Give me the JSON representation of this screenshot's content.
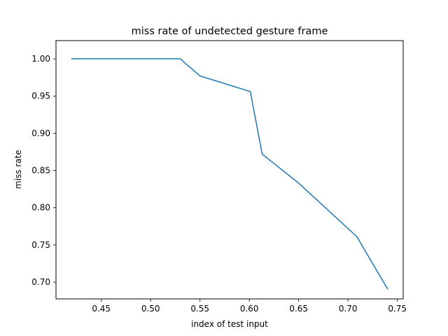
{
  "chart_data": {
    "type": "line",
    "title": "miss rate of undetected gesture frame",
    "xlabel": "index of test input",
    "ylabel": "miss rate",
    "xlim": [
      0.4041,
      0.7559
    ],
    "ylim": [
      0.6775,
      1.0245
    ],
    "xticks": [
      0.45,
      0.5,
      0.55,
      0.6,
      0.65,
      0.7,
      0.75
    ],
    "xtick_labels": [
      "0.45",
      "0.50",
      "0.55",
      "0.60",
      "0.65",
      "0.70",
      "0.75"
    ],
    "yticks": [
      0.7,
      0.75,
      0.8,
      0.85,
      0.9,
      0.95,
      1.0
    ],
    "ytick_labels": [
      "0.70",
      "0.75",
      "0.80",
      "0.85",
      "0.90",
      "0.95",
      "1.00"
    ],
    "grid": false,
    "legend": "none",
    "series": [
      {
        "color": "#1f77b4",
        "points": [
          [
            0.42,
            1.0
          ],
          [
            0.44,
            1.0
          ],
          [
            0.42,
            1.0
          ],
          [
            0.53,
            1.0
          ],
          [
            0.55,
            0.977
          ],
          [
            0.601,
            0.956
          ],
          [
            0.613,
            0.872
          ],
          [
            0.65,
            0.833
          ],
          [
            0.709,
            0.761
          ],
          [
            0.74,
            0.691
          ]
        ]
      }
    ]
  }
}
